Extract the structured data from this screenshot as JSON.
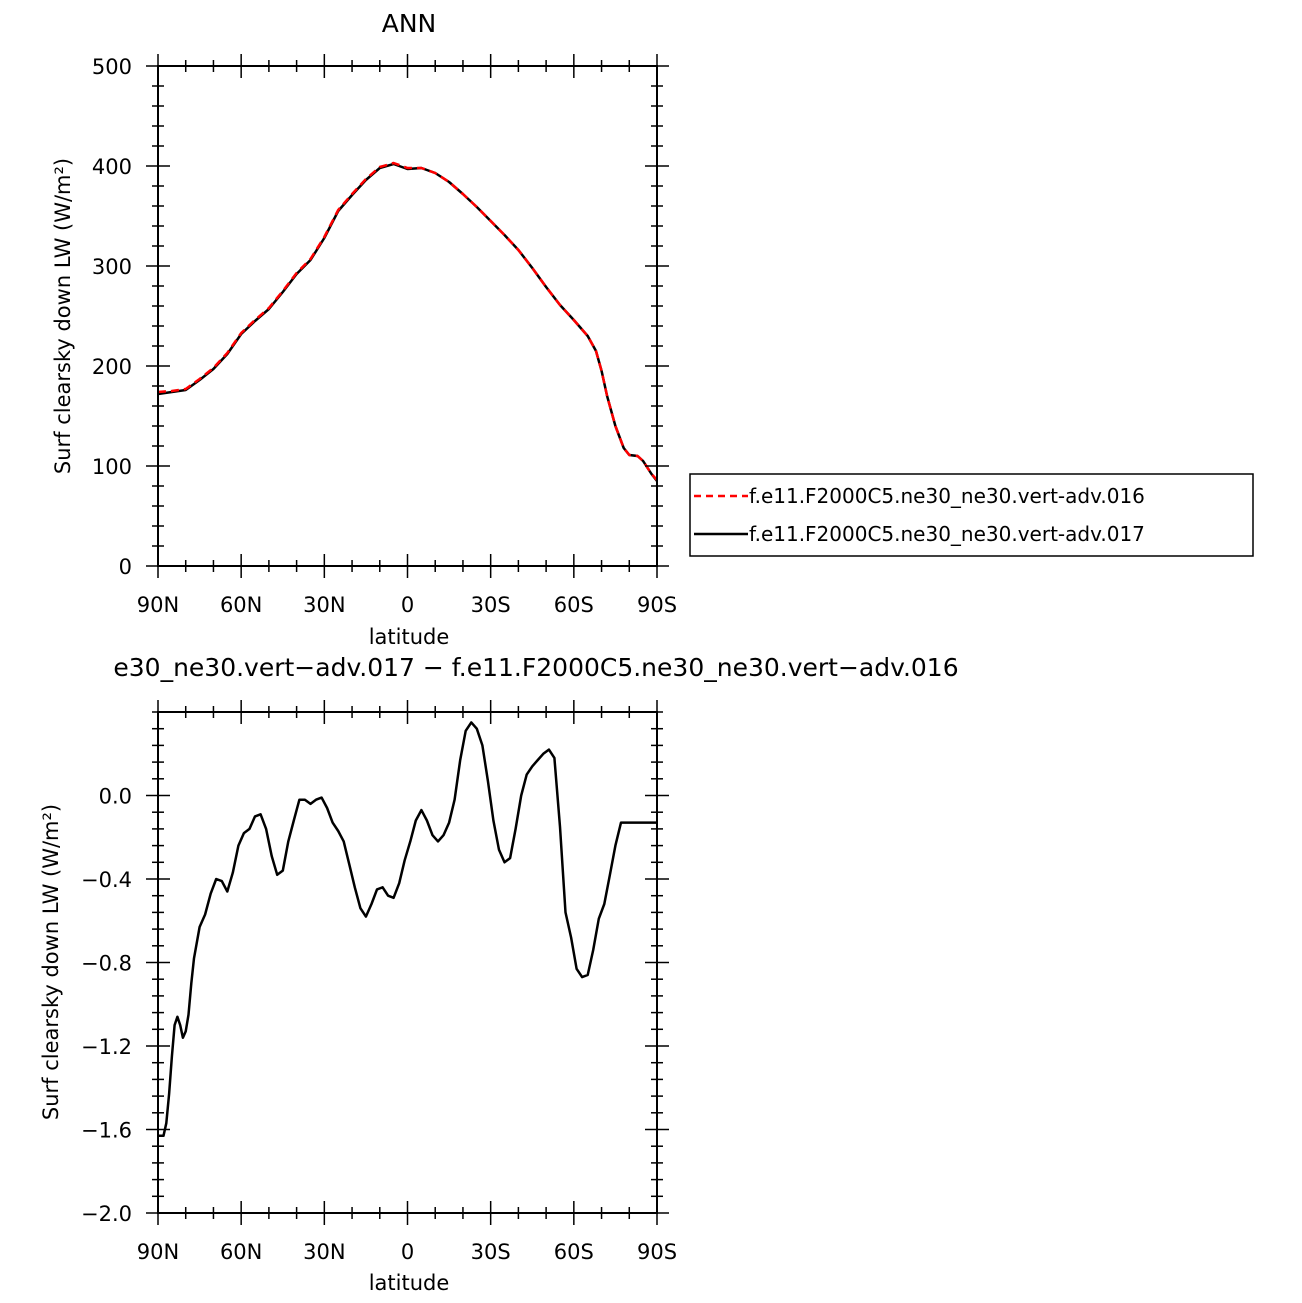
{
  "chart_data": [
    {
      "type": "line",
      "title": "ANN",
      "xlabel": "latitude",
      "ylabel": "Surf clearsky down LW (W/m²)",
      "xlim": [
        90,
        -90
      ],
      "ylim": [
        0,
        500
      ],
      "yticks": [
        "0",
        "100",
        "200",
        "300",
        "400",
        "500"
      ],
      "xticks": [
        {
          "v": 90,
          "label": "90N"
        },
        {
          "v": 60,
          "label": "60N"
        },
        {
          "v": 30,
          "label": "30N"
        },
        {
          "v": 0,
          "label": "0"
        },
        {
          "v": -30,
          "label": "30S"
        },
        {
          "v": -60,
          "label": "60S"
        },
        {
          "v": -90,
          "label": "90S"
        }
      ],
      "legend_position": "right",
      "series": [
        {
          "name": "f.e11.F2000C5.ne30_ne30.vert-adv.016",
          "color": "#ff0000",
          "dash": "dashed",
          "x": [
            90,
            85,
            80,
            75,
            70,
            65,
            60,
            55,
            50,
            45,
            40,
            35,
            30,
            25,
            20,
            15,
            10,
            5,
            0,
            -5,
            -10,
            -15,
            -20,
            -25,
            -30,
            -35,
            -40,
            -45,
            -50,
            -55,
            -60,
            -65,
            -68,
            -70,
            -72,
            -75,
            -78,
            -80,
            -83,
            -85,
            -88,
            -90
          ],
          "y": [
            174,
            175,
            177,
            187,
            198,
            213,
            233,
            246,
            258,
            275,
            293,
            307,
            329,
            356,
            372,
            387,
            399,
            403,
            398,
            398,
            393,
            384,
            372,
            359,
            345,
            331,
            316,
            298,
            279,
            261,
            246,
            230,
            215,
            195,
            170,
            140,
            118,
            111,
            110,
            105,
            92,
            86
          ]
        },
        {
          "name": "f.e11.F2000C5.ne30_ne30.vert-adv.017",
          "color": "#000000",
          "dash": "solid",
          "x": [
            90,
            85,
            80,
            75,
            70,
            65,
            60,
            55,
            50,
            45,
            40,
            35,
            30,
            25,
            20,
            15,
            10,
            5,
            0,
            -5,
            -10,
            -15,
            -20,
            -25,
            -30,
            -35,
            -40,
            -45,
            -50,
            -55,
            -60,
            -65,
            -68,
            -70,
            -72,
            -75,
            -78,
            -80,
            -83,
            -85,
            -88,
            -90
          ],
          "y": [
            172,
            174,
            176,
            186,
            197,
            212,
            232,
            245,
            257,
            274,
            292,
            306,
            328,
            355,
            371,
            386,
            398,
            402,
            397,
            398,
            393,
            384,
            372,
            359,
            345,
            331,
            316,
            298,
            279,
            261,
            246,
            230,
            215,
            195,
            170,
            140,
            118,
            111,
            110,
            105,
            92,
            85
          ]
        }
      ]
    },
    {
      "type": "line",
      "title": "e30_ne30.vert−adv.017 − f.e11.F2000C5.ne30_ne30.vert−adv.016",
      "xlabel": "latitude",
      "ylabel": "Surf clearsky down LW (W/m²)",
      "xlim": [
        90,
        -90
      ],
      "ylim": [
        -2.0,
        0.4
      ],
      "yticks": [
        {
          "v": 0.0,
          "label": "0.0"
        },
        {
          "v": -0.4,
          "label": "−0.4"
        },
        {
          "v": -0.8,
          "label": "−0.8"
        },
        {
          "v": -1.2,
          "label": "−1.2"
        },
        {
          "v": -1.6,
          "label": "−1.6"
        },
        {
          "v": -2.0,
          "label": "−2.0"
        }
      ],
      "xticks": [
        {
          "v": 90,
          "label": "90N"
        },
        {
          "v": 60,
          "label": "60N"
        },
        {
          "v": 30,
          "label": "30N"
        },
        {
          "v": 0,
          "label": "0"
        },
        {
          "v": -30,
          "label": "30S"
        },
        {
          "v": -60,
          "label": "60S"
        },
        {
          "v": -90,
          "label": "90S"
        }
      ],
      "series": [
        {
          "color": "#000000",
          "x": [
            90,
            88,
            87,
            86,
            85,
            84,
            83,
            82,
            81,
            80,
            79,
            78,
            77,
            75,
            73,
            71,
            69,
            67,
            65,
            63,
            61,
            59,
            57,
            55,
            53,
            51,
            49,
            47,
            45,
            43,
            41,
            40,
            39,
            37,
            35,
            33,
            31,
            29,
            27,
            25,
            23,
            21,
            19,
            17,
            15,
            13,
            11,
            9,
            7,
            5,
            3,
            1,
            -1,
            -3,
            -5,
            -7,
            -9,
            -11,
            -13,
            -15,
            -17,
            -19,
            -21,
            -23,
            -25,
            -27,
            -29,
            -31,
            -33,
            -35,
            -37,
            -39,
            -41,
            -43,
            -45,
            -47,
            -49,
            -51,
            -53,
            -55,
            -57,
            -59,
            -61,
            -63,
            -65,
            -67,
            -69,
            -71,
            -73,
            -75,
            -77,
            -79,
            -81,
            -83,
            -85,
            -87,
            -89,
            -90
          ],
          "y": [
            -1.63,
            -1.63,
            -1.57,
            -1.43,
            -1.25,
            -1.1,
            -1.06,
            -1.1,
            -1.16,
            -1.13,
            -1.05,
            -0.9,
            -0.78,
            -0.63,
            -0.57,
            -0.47,
            -0.4,
            -0.41,
            -0.46,
            -0.37,
            -0.24,
            -0.18,
            -0.16,
            -0.1,
            -0.09,
            -0.16,
            -0.29,
            -0.38,
            -0.36,
            -0.22,
            -0.12,
            -0.07,
            -0.02,
            -0.02,
            -0.04,
            -0.02,
            -0.01,
            -0.06,
            -0.13,
            -0.17,
            -0.22,
            -0.33,
            -0.44,
            -0.54,
            -0.58,
            -0.52,
            -0.45,
            -0.44,
            -0.48,
            -0.49,
            -0.42,
            -0.31,
            -0.22,
            -0.12,
            -0.07,
            -0.12,
            -0.19,
            -0.22,
            -0.19,
            -0.13,
            -0.02,
            0.17,
            0.31,
            0.35,
            0.32,
            0.24,
            0.07,
            -0.12,
            -0.26,
            -0.32,
            -0.3,
            -0.16,
            0.0,
            0.1,
            0.14,
            0.17,
            0.2,
            0.22,
            0.18,
            -0.15,
            -0.56,
            -0.68,
            -0.83,
            -0.87,
            -0.86,
            -0.74,
            -0.59,
            -0.52,
            -0.38,
            -0.24,
            -0.13,
            -0.13,
            -0.13,
            -0.13,
            -0.13,
            -0.13,
            -0.13,
            -0.13
          ]
        }
      ]
    }
  ]
}
